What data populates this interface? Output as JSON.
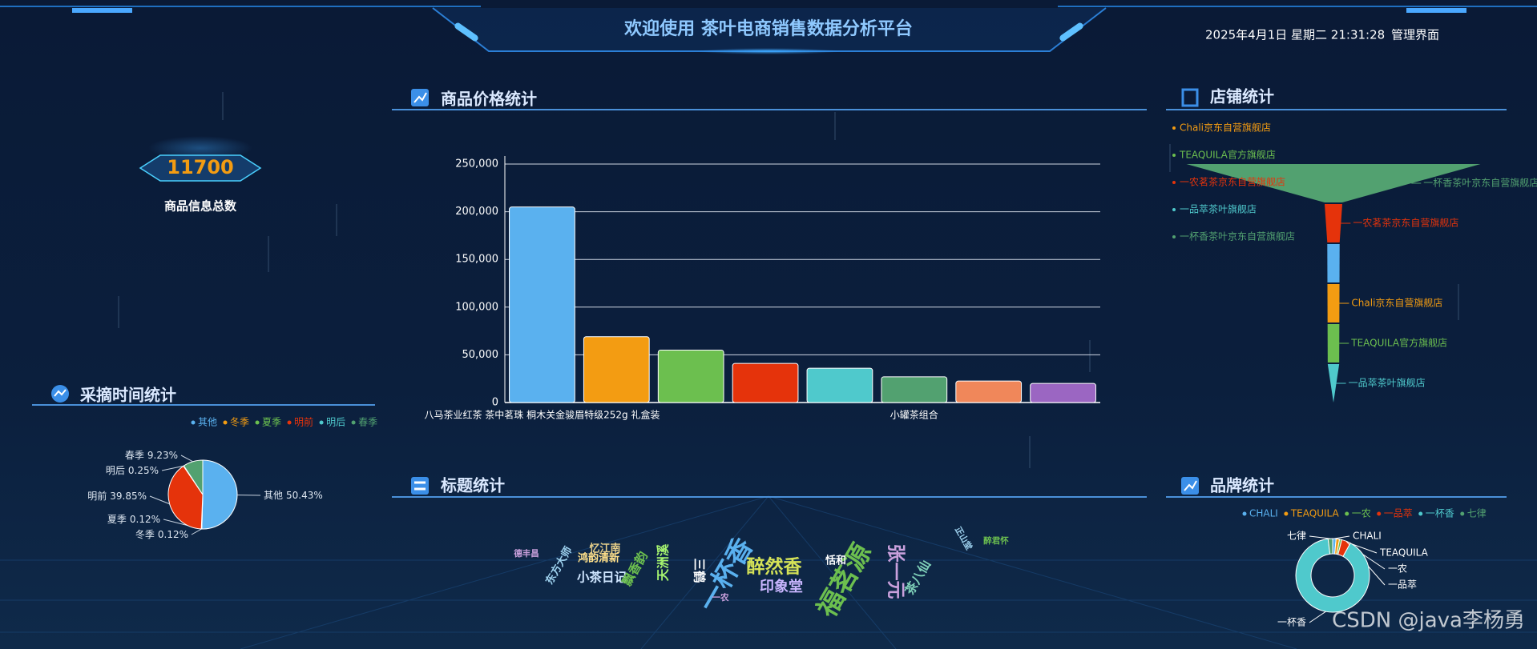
{
  "header": {
    "title": "欢迎使用 茶叶电商销售数据分析平台",
    "datetime": "2025年4月1日 星期二 21:31:28",
    "admin_link": "管理界面"
  },
  "kpi": {
    "value": 11700,
    "label": "商品信息总数"
  },
  "chart_data": [
    {
      "type": "bar",
      "title": "商品价格统计",
      "categories": [
        "八马茶业红茶 茶中茗珠 桐木关金骏眉特级252g 礼盒装",
        null,
        null,
        null,
        null,
        "小罐茶组合",
        null,
        null
      ],
      "values": [
        205000,
        69000,
        55000,
        41000,
        36000,
        27000,
        22500,
        20000
      ],
      "colors": [
        "#5ab1ef",
        "#f39c12",
        "#6cbf4f",
        "#e5330b",
        "#4fc9cc",
        "#52a170",
        "#f0875a",
        "#9b66c2"
      ],
      "ylim": [
        0,
        250000
      ],
      "yticks": [
        0,
        {
          "value": 50000,
          "label": "50,000"
        },
        {
          "value": 100000,
          "label": "100,000"
        },
        {
          "value": 150000,
          "label": "150,000"
        },
        {
          "value": 200000,
          "label": "200,000"
        },
        {
          "value": 250000,
          "label": "250,000"
        }
      ],
      "grid": true
    },
    {
      "type": "funnel",
      "title": "店铺统计",
      "categories": [
        "Chali京东自营旗舰店",
        "TEAQUILA官方旗舰店",
        "一农茗茶京东自营旗舰店",
        "一品萃茶叶旗舰店",
        "一杯香茶叶京东自营旗舰店",
        null
      ],
      "values": [
        4.1,
        4,
        6,
        3.9,
        100,
        4.2
      ],
      "colors": [
        "#f39c12",
        "#6cbf4f",
        "#e5330b",
        "#4fc9cc",
        "#52a170",
        "#5ab1ef"
      ],
      "legend": "top-left"
    },
    {
      "type": "pie",
      "title": "采摘时间统计",
      "categories": [
        "其他",
        "冬季",
        "夏季",
        "明前",
        "明后",
        "春季"
      ],
      "values": [
        50.43,
        0.12,
        0.12,
        39.85,
        0.25,
        9.23
      ],
      "value_labels": [
        "50.43%",
        "0.12%",
        "0.12%",
        "39.85%",
        "0.25%",
        "9.23%"
      ],
      "colors": [
        "#5ab1ef",
        "#f39c12",
        "#6cbf4f",
        "#e5330b",
        "#4fc9cc",
        "#52a170"
      ],
      "legend": "top-right"
    },
    {
      "type": "wordcloud",
      "title": "标题统计",
      "words": [
        "德丰昌",
        "东方大师",
        "忆江南",
        "鸿韵清新",
        "小茶日记",
        "飘香韵",
        "天洲溪",
        "三鹤",
        "一杯香",
        "一农",
        "醉然香",
        "印象堂",
        "福茗源",
        "恬和",
        "张一元",
        "茶八仙",
        "正山堂",
        "醉君怀"
      ],
      "values": [
        1,
        2,
        2,
        2,
        3,
        3,
        3,
        3,
        10,
        1,
        6,
        4,
        10,
        2,
        6,
        3,
        1,
        1
      ],
      "colors": [
        "#c9a0dc",
        "#9fd3f0",
        "#e8d08a",
        "#ffe08a",
        "#cfe6ff",
        "#6cbf4f",
        "#a5f36f",
        "#ffffff",
        "#5ab1ef",
        "#c9a0dc",
        "#d4e157",
        "#c9b6ff",
        "#6cbf4f",
        "#ffffff",
        "#c9a0dc",
        "#7fd1b9",
        "#9fd3f0",
        "#6cbf4f"
      ]
    },
    {
      "type": "donut",
      "title": "品牌统计",
      "categories": [
        "CHALI",
        "TEAQUILA",
        "一农",
        "一品萃",
        "一杯香",
        "七律"
      ],
      "values": [
        1.5,
        1.5,
        1,
        4,
        90,
        2
      ],
      "colors": [
        "#5ab1ef",
        "#f39c12",
        "#6cbf4f",
        "#e5330b",
        "#4fc9cc",
        "#52a170"
      ],
      "legend": "top"
    }
  ],
  "watermark": "CSDN @java李杨勇"
}
